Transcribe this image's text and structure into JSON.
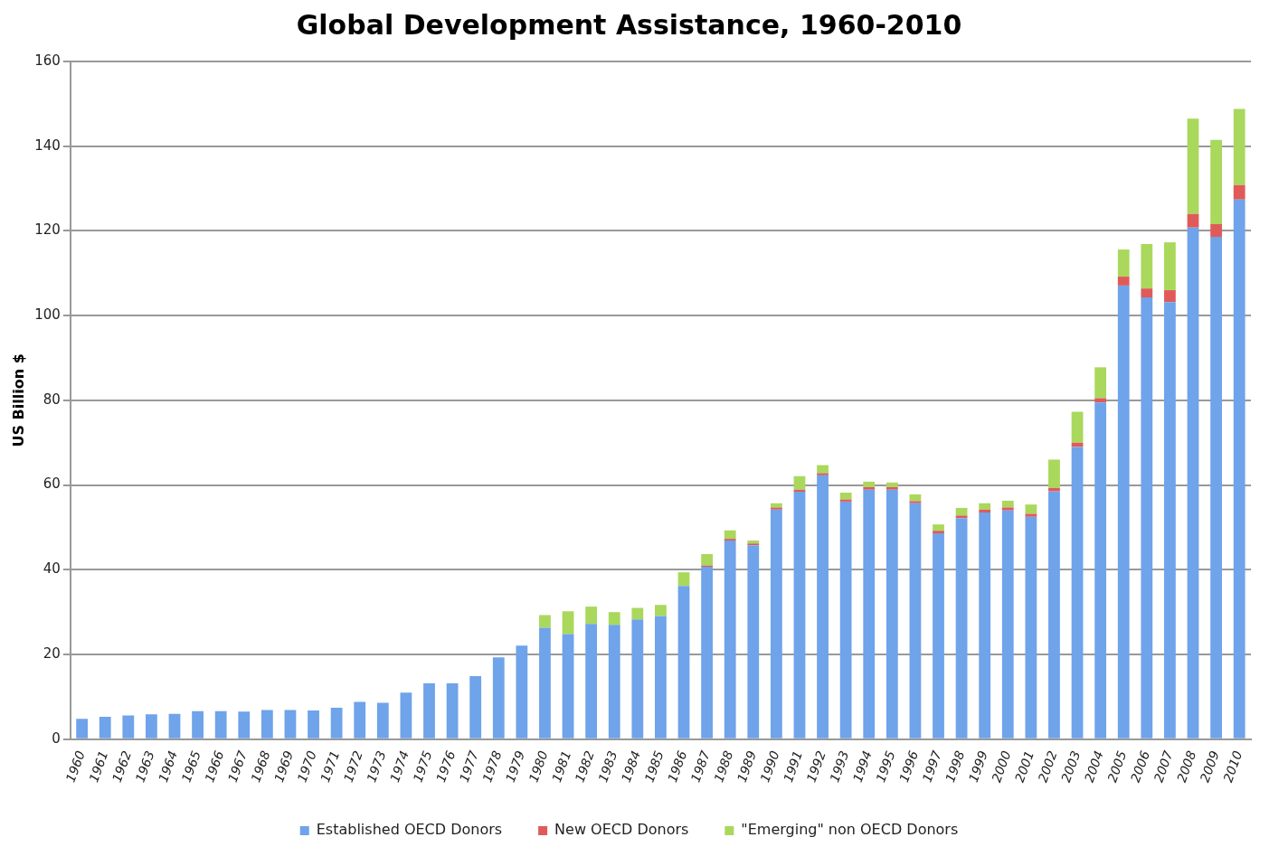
{
  "chart_data": {
    "type": "bar",
    "title": "Global Development Assistance, 1960-2010",
    "ylabel": "US Billion $",
    "categories": [
      "1960",
      "1961",
      "1962",
      "1963",
      "1964",
      "1965",
      "1966",
      "1967",
      "1968",
      "1969",
      "1970",
      "1971",
      "1972",
      "1973",
      "1974",
      "1975",
      "1976",
      "1977",
      "1978",
      "1979",
      "1980",
      "1981",
      "1982",
      "1983",
      "1984",
      "1985",
      "1986",
      "1987",
      "1988",
      "1989",
      "1990",
      "1991",
      "1992",
      "1993",
      "1994",
      "1995",
      "1996",
      "1997",
      "1998",
      "1999",
      "2000",
      "2001",
      "2002",
      "2003",
      "2004",
      "2005",
      "2006",
      "2007",
      "2008",
      "2009",
      "2010"
    ],
    "stacked": true,
    "series": [
      {
        "name": "Established OECD Donors",
        "color": "#6fa3ea",
        "values": [
          4.8,
          5.3,
          5.6,
          5.9,
          6.0,
          6.6,
          6.6,
          6.5,
          6.9,
          6.9,
          6.8,
          7.4,
          8.8,
          8.6,
          11.0,
          13.2,
          13.2,
          14.9,
          19.3,
          22.1,
          26.3,
          24.8,
          27.2,
          27.0,
          28.3,
          29.1,
          36.2,
          40.7,
          46.9,
          45.8,
          54.2,
          58.4,
          62.3,
          56.1,
          58.9,
          58.9,
          55.7,
          48.6,
          52.2,
          53.5,
          54.0,
          52.5,
          58.5,
          69.0,
          79.5,
          107.1,
          104.3,
          103.2,
          120.8,
          118.6,
          127.4
        ]
      },
      {
        "name": "New OECD Donors",
        "color": "#e05a5a",
        "values": [
          0,
          0,
          0,
          0,
          0,
          0,
          0,
          0,
          0,
          0,
          0,
          0,
          0,
          0,
          0,
          0,
          0,
          0,
          0,
          0,
          0,
          0,
          0,
          0,
          0,
          0,
          0,
          0.3,
          0.4,
          0.4,
          0.5,
          0.5,
          0.5,
          0.5,
          0.6,
          0.6,
          0.5,
          0.6,
          0.6,
          0.7,
          0.7,
          0.7,
          0.8,
          1.0,
          1.0,
          2.1,
          2.1,
          2.8,
          3.2,
          3.0,
          3.4
        ]
      },
      {
        "name": "\"Emerging\" non OECD Donors",
        "color": "#a9d85c",
        "values": [
          0,
          0,
          0,
          0,
          0,
          0,
          0,
          0,
          0,
          0,
          0,
          0,
          0,
          0,
          0,
          0,
          0,
          0,
          0,
          0,
          3.0,
          5.4,
          4.1,
          3.0,
          2.7,
          2.6,
          3.2,
          2.7,
          2.0,
          0.7,
          1.0,
          3.2,
          1.9,
          1.6,
          1.3,
          1.1,
          1.6,
          1.5,
          1.8,
          1.5,
          1.6,
          2.2,
          6.7,
          7.3,
          7.3,
          6.4,
          10.5,
          11.3,
          22.5,
          19.9,
          18.0
        ]
      }
    ],
    "ylim": [
      0,
      160
    ],
    "yticks": [
      0,
      20,
      40,
      60,
      80,
      100,
      120,
      140,
      160
    ],
    "grid": "y",
    "legend": "bottom"
  }
}
